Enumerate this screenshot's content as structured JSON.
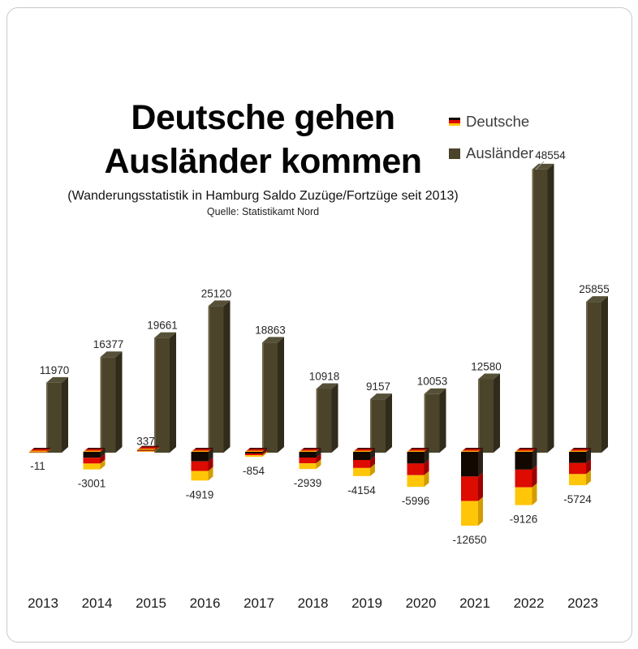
{
  "title": {
    "line1": "Deutsche gehen",
    "line2": "Ausländer kommen",
    "subtitle": "(Wanderungsstatistik in Hamburg Saldo Zuzüge/Fortzüge seit 2013)",
    "source": "Quelle: Statistikamt Nord"
  },
  "legend": [
    {
      "label": "Deutsche",
      "swatch": "german-flag"
    },
    {
      "label": "Ausländer",
      "swatch": "olive"
    }
  ],
  "colors": {
    "auslaender_front": "#4b442b",
    "auslaender_side": "#302b1a",
    "auslaender_top": "#555037",
    "auslaender_highlight": "#6b6448",
    "flag_black": "#120800",
    "flag_red": "#dd0b00",
    "flag_gold": "#ffc609",
    "flag_black_side": "#2a2118",
    "flag_red_side": "#9e0000",
    "flag_gold_side": "#d29c00",
    "callout_line": "#999999",
    "label_text": "#262626",
    "axis_text": "#1a1a1a",
    "border": "#c9c9c9"
  },
  "chart_data": {
    "type": "bar",
    "title": "Deutsche gehen Ausländer kommen",
    "subtitle": "(Wanderungsstatistik in Hamburg Saldo Zuzüge/Fortzüge seit 2013)",
    "source": "Quelle: Statistikamt Nord",
    "categories": [
      "2013",
      "2014",
      "2015",
      "2016",
      "2017",
      "2018",
      "2019",
      "2020",
      "2021",
      "2022",
      "2023"
    ],
    "series": [
      {
        "name": "Deutsche",
        "values": [
          -11,
          -3001,
          337,
          -4919,
          -854,
          -2939,
          -4154,
          -5996,
          -12650,
          -9126,
          -5724
        ]
      },
      {
        "name": "Ausländer",
        "values": [
          11970,
          16377,
          19661,
          25120,
          18863,
          10918,
          9157,
          10053,
          12580,
          48554,
          25855
        ]
      }
    ],
    "data_labels": true,
    "legend_position": "top-right",
    "grid": false,
    "axis_range": [
      -12650,
      48554
    ],
    "style": "3d-bars",
    "callout": {
      "category": "2022",
      "series": "Ausländer",
      "value": 48554
    }
  }
}
